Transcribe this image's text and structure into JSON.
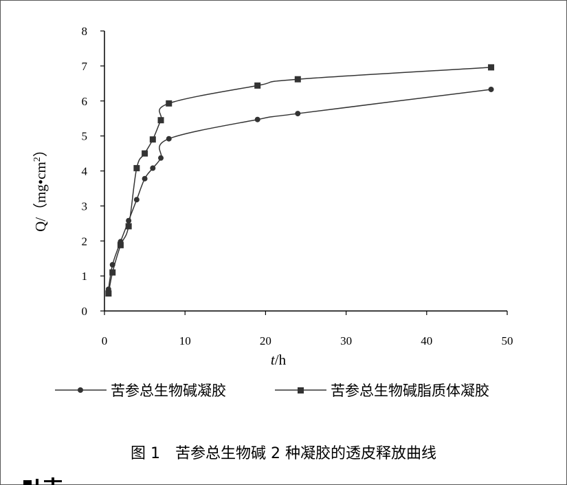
{
  "chart_data": {
    "type": "line",
    "xlim": [
      0,
      50
    ],
    "ylim": [
      0,
      8
    ],
    "x_ticks": [
      "0",
      "10",
      "20",
      "30",
      "40",
      "50"
    ],
    "y_ticks": [
      "0",
      "1",
      "2",
      "3",
      "4",
      "5",
      "6",
      "7",
      "8"
    ],
    "xlabel_italic": "t",
    "xlabel_unit": "/h",
    "ylabel_prefix": "Q/（mg•cm",
    "ylabel_sup": "2",
    "ylabel_suffix": "）",
    "legend_position": "bottom",
    "series": [
      {
        "name": "苦参总生物碱凝胶",
        "marker": "circle",
        "color": "#333333",
        "x": [
          0.5,
          1,
          2,
          3,
          4,
          5,
          6,
          7,
          8,
          19,
          24,
          48
        ],
        "y": [
          0.62,
          1.32,
          1.98,
          2.58,
          3.18,
          3.78,
          4.08,
          4.37,
          4.92,
          5.47,
          5.64,
          6.33
        ]
      },
      {
        "name": "苦参总生物碱脂质体凝胶",
        "marker": "square",
        "color": "#333333",
        "x": [
          0.5,
          1,
          2,
          3,
          4,
          5,
          6,
          7,
          8,
          19,
          24,
          48
        ],
        "y": [
          0.5,
          1.1,
          1.88,
          2.42,
          4.08,
          4.5,
          4.9,
          5.45,
          5.93,
          6.44,
          6.62,
          6.96
        ]
      }
    ]
  },
  "caption": "图 1　苦参总生物碱 2 种凝胶的透皮释放曲线"
}
